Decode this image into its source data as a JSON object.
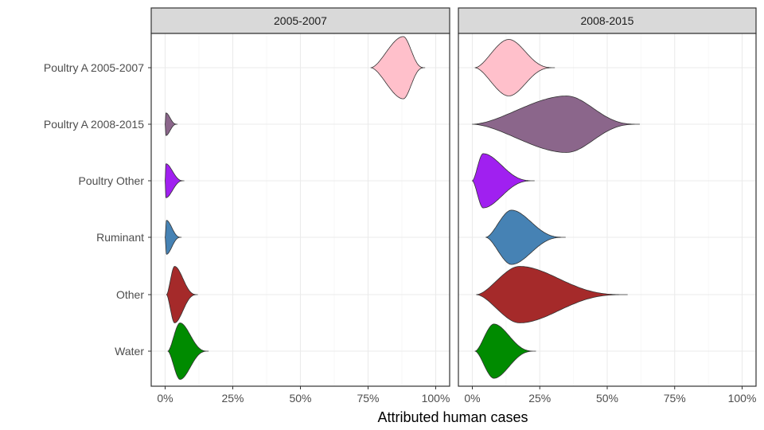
{
  "chart_data": {
    "type": "violin",
    "xlabel": "Attributed human cases",
    "ylabel": "",
    "xlim": [
      0,
      100
    ],
    "x_ticks": [
      "0%",
      "25%",
      "50%",
      "75%",
      "100%"
    ],
    "categories": [
      "Poultry A 2005-2007",
      "Poultry A 2008-2015",
      "Poultry Other",
      "Ruminant",
      "Other",
      "Water"
    ],
    "colors": {
      "Poultry A 2005-2007": "#FFC0CB",
      "Poultry A 2008-2015": "#8B668B",
      "Poultry Other": "#A020F0",
      "Ruminant": "#4682B4",
      "Other": "#A52A2A",
      "Water": "#008B00"
    },
    "grid": true,
    "legend": "none",
    "panels": [
      {
        "label": "2005-2007",
        "series": [
          {
            "category": "Poultry A 2005-2007",
            "min": 76,
            "mode": 88,
            "max": 96,
            "p10": 83,
            "p90": 93,
            "peak_width": 0.55
          },
          {
            "category": "Poultry A 2008-2015",
            "min": 0,
            "mode": 0.3,
            "max": 4.5,
            "p10": 0,
            "p90": 1.5,
            "peak_width": 0.2
          },
          {
            "category": "Poultry Other",
            "min": 0,
            "mode": 0.3,
            "max": 7,
            "p10": 0,
            "p90": 2,
            "peak_width": 0.3
          },
          {
            "category": "Ruminant",
            "min": 0,
            "mode": 0.5,
            "max": 6,
            "p10": 0,
            "p90": 2,
            "peak_width": 0.3
          },
          {
            "category": "Other",
            "min": 0.5,
            "mode": 3.5,
            "max": 12,
            "p10": 2,
            "p90": 7,
            "peak_width": 0.5
          },
          {
            "category": "Water",
            "min": 1,
            "mode": 5.5,
            "max": 16,
            "p10": 3,
            "p90": 9,
            "peak_width": 0.5
          }
        ]
      },
      {
        "label": "2008-2015",
        "series": [
          {
            "category": "Poultry A 2005-2007",
            "min": 1,
            "mode": 13.5,
            "max": 30.5,
            "p10": 9,
            "p90": 20,
            "peak_width": 0.5
          },
          {
            "category": "Poultry A 2008-2015",
            "min": 0,
            "mode": 35,
            "max": 62,
            "p10": 20,
            "p90": 48,
            "peak_width": 0.5
          },
          {
            "category": "Poultry Other",
            "min": 0,
            "mode": 4,
            "max": 23,
            "p10": 1,
            "p90": 11,
            "peak_width": 0.48
          },
          {
            "category": "Ruminant",
            "min": 5,
            "mode": 14.5,
            "max": 34.5,
            "p10": 10,
            "p90": 22,
            "peak_width": 0.48
          },
          {
            "category": "Other",
            "min": 1.5,
            "mode": 17.5,
            "max": 57.5,
            "p10": 9,
            "p90": 33,
            "peak_width": 0.5
          },
          {
            "category": "Water",
            "min": 1,
            "mode": 8,
            "max": 23.5,
            "p10": 4,
            "p90": 14,
            "peak_width": 0.48
          }
        ]
      }
    ]
  }
}
